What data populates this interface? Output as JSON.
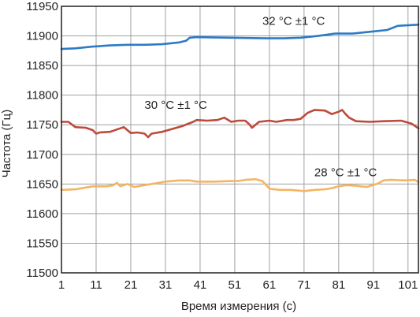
{
  "chart_data": {
    "type": "line",
    "xlabel": "Время измерения (с)",
    "ylabel": "Частота (Гц)",
    "xlim": [
      1,
      104
    ],
    "ylim": [
      11500,
      11950
    ],
    "grid": true,
    "x_ticks": [
      "1",
      "11",
      "21",
      "31",
      "41",
      "51",
      "61",
      "71",
      "81",
      "91",
      "101"
    ],
    "y_ticks": [
      "11500",
      "11550",
      "11600",
      "11650",
      "11700",
      "11750",
      "11800",
      "11850",
      "11900",
      "11950"
    ],
    "annotations": [
      {
        "text": "32 °C ±1 °C",
        "x": 68,
        "y": 11919
      },
      {
        "text": "30 °C ±1 °C",
        "x": 34,
        "y": 11777
      },
      {
        "text": "28 °C ±1 °C",
        "x": 83,
        "y": 11663
      }
    ],
    "series": [
      {
        "color": "#2d7bc4",
        "points": [
          [
            1,
            11878
          ],
          [
            5,
            11879
          ],
          [
            10,
            11882
          ],
          [
            15,
            11884
          ],
          [
            20,
            11885
          ],
          [
            25,
            11885
          ],
          [
            30,
            11886
          ],
          [
            35,
            11889
          ],
          [
            37,
            11892
          ],
          [
            38,
            11897
          ],
          [
            40,
            11898
          ],
          [
            50,
            11897
          ],
          [
            60,
            11896
          ],
          [
            65,
            11896
          ],
          [
            70,
            11897
          ],
          [
            75,
            11900
          ],
          [
            80,
            11904
          ],
          [
            85,
            11904
          ],
          [
            90,
            11907
          ],
          [
            95,
            11910
          ],
          [
            98,
            11917
          ],
          [
            104,
            11919
          ]
        ]
      },
      {
        "color": "#bd4a3b",
        "points": [
          [
            1,
            11755
          ],
          [
            3,
            11755
          ],
          [
            5,
            11746
          ],
          [
            8,
            11745
          ],
          [
            10,
            11741
          ],
          [
            11,
            11735
          ],
          [
            12,
            11737
          ],
          [
            15,
            11738
          ],
          [
            17,
            11742
          ],
          [
            19,
            11746
          ],
          [
            21,
            11736
          ],
          [
            23,
            11737
          ],
          [
            25,
            11735
          ],
          [
            26,
            11729
          ],
          [
            27,
            11735
          ],
          [
            30,
            11738
          ],
          [
            33,
            11743
          ],
          [
            36,
            11748
          ],
          [
            39,
            11755
          ],
          [
            40,
            11758
          ],
          [
            43,
            11757
          ],
          [
            46,
            11758
          ],
          [
            48,
            11762
          ],
          [
            50,
            11755
          ],
          [
            52,
            11757
          ],
          [
            54,
            11757
          ],
          [
            55,
            11752
          ],
          [
            56,
            11745
          ],
          [
            58,
            11755
          ],
          [
            61,
            11757
          ],
          [
            63,
            11755
          ],
          [
            66,
            11758
          ],
          [
            68,
            11758
          ],
          [
            70,
            11760
          ],
          [
            72,
            11770
          ],
          [
            74,
            11775
          ],
          [
            77,
            11774
          ],
          [
            79,
            11768
          ],
          [
            81,
            11772
          ],
          [
            82,
            11775
          ],
          [
            83,
            11768
          ],
          [
            84,
            11762
          ],
          [
            86,
            11756
          ],
          [
            90,
            11755
          ],
          [
            94,
            11756
          ],
          [
            99,
            11757
          ],
          [
            102,
            11752
          ],
          [
            104,
            11744
          ]
        ]
      },
      {
        "color": "#f4b562",
        "points": [
          [
            1,
            11640
          ],
          [
            5,
            11641
          ],
          [
            10,
            11646
          ],
          [
            14,
            11646
          ],
          [
            16,
            11648
          ],
          [
            17,
            11652
          ],
          [
            18,
            11646
          ],
          [
            20,
            11650
          ],
          [
            22,
            11645
          ],
          [
            25,
            11648
          ],
          [
            28,
            11651
          ],
          [
            31,
            11654
          ],
          [
            33,
            11655
          ],
          [
            35,
            11656
          ],
          [
            38,
            11656
          ],
          [
            40,
            11654
          ],
          [
            45,
            11654
          ],
          [
            50,
            11655
          ],
          [
            52,
            11655
          ],
          [
            54,
            11657
          ],
          [
            57,
            11658
          ],
          [
            59,
            11655
          ],
          [
            61,
            11642
          ],
          [
            64,
            11640
          ],
          [
            67,
            11640
          ],
          [
            71,
            11638
          ],
          [
            74,
            11640
          ],
          [
            77,
            11641
          ],
          [
            79,
            11643
          ],
          [
            81,
            11646
          ],
          [
            83,
            11648
          ],
          [
            86,
            11647
          ],
          [
            89,
            11645
          ],
          [
            92,
            11650
          ],
          [
            94,
            11656
          ],
          [
            96,
            11657
          ],
          [
            100,
            11656
          ],
          [
            103,
            11657
          ],
          [
            104,
            11653
          ]
        ]
      }
    ]
  }
}
